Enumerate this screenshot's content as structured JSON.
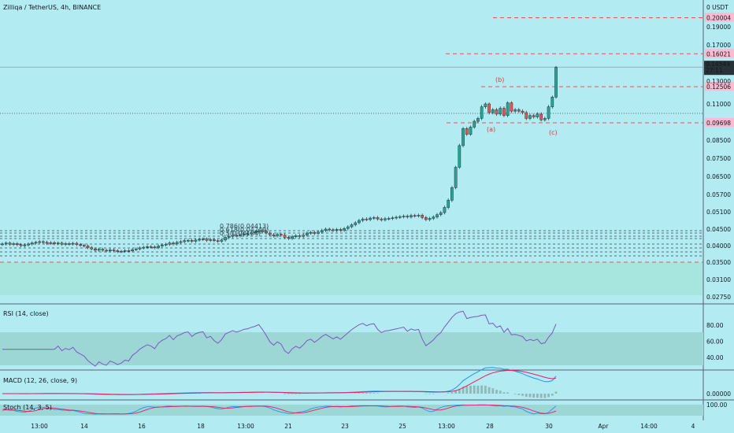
{
  "header": {
    "title": "Zilliqa / TetherUS, 4h, BINANCE",
    "rsi_label": "RSI (14, close)",
    "macd_label": "MACD (12, 26, close, 9)",
    "stoch_label": "Stoch (14, 3, 5)"
  },
  "colors": {
    "background": "#b2ebf2",
    "up": "#26a69a",
    "down": "#ef5350",
    "level_line": "#ef5350",
    "rsi": "#7e57c2",
    "macd": "#2196f3",
    "signal": "#e91e63"
  },
  "chart_data": [
    {
      "type": "candlestick",
      "title": "Zilliqa / TetherUS, 4h, BINANCE",
      "y_unit": "USDT",
      "x_ticks": [
        "13:00",
        "14",
        "16",
        "18",
        "13:00",
        "21",
        "23",
        "25",
        "13:00",
        "28",
        "30",
        "Apr",
        "14:00",
        "4"
      ],
      "y_ticks": [
        "0.19000",
        "0.17000",
        "0.13000",
        "0.11000",
        "0.08500",
        "0.07500",
        "0.06500",
        "0.05700",
        "0.05100",
        "0.04500",
        "0.04000",
        "0.03500",
        "0.03100",
        "0.02750"
      ],
      "axis_unit_label": "0 USDT",
      "last_price": {
        "value": "0.14549",
        "countdown": "27:11"
      },
      "price_labels": [
        "0.20004",
        "0.16021",
        "0.12506",
        "0.09698"
      ],
      "fib_labels": [
        "0.786(0.04413)",
        "0.618(0.04249)",
        "0.5(0.04104)"
      ],
      "wave_labels": [
        "(a)",
        "(b)",
        "(c)"
      ],
      "close": [
        0.0405,
        0.0408,
        0.0404,
        0.0406,
        0.0403,
        0.04,
        0.0402,
        0.0405,
        0.0408,
        0.041,
        0.0412,
        0.041,
        0.0407,
        0.0409,
        0.0406,
        0.0408,
        0.0404,
        0.0406,
        0.0405,
        0.0407,
        0.0403,
        0.0401,
        0.0399,
        0.0394,
        0.039,
        0.0386,
        0.0389,
        0.0386,
        0.0384,
        0.0387,
        0.0385,
        0.0382,
        0.0383,
        0.0385,
        0.0384,
        0.0388,
        0.039,
        0.0393,
        0.0395,
        0.0397,
        0.0396,
        0.0394,
        0.0399,
        0.0402,
        0.0404,
        0.0408,
        0.0405,
        0.041,
        0.0412,
        0.0415,
        0.0416,
        0.0413,
        0.0417,
        0.0419,
        0.042,
        0.0416,
        0.0418,
        0.0415,
        0.0413,
        0.0417,
        0.0425,
        0.0428,
        0.0431,
        0.043,
        0.0432,
        0.0435,
        0.0436,
        0.0439,
        0.0441,
        0.0445,
        0.0442,
        0.0438,
        0.0433,
        0.043,
        0.0434,
        0.0432,
        0.0425,
        0.0422,
        0.0427,
        0.043,
        0.0428,
        0.0432,
        0.0438,
        0.044,
        0.0437,
        0.0441,
        0.0446,
        0.045,
        0.0448,
        0.0446,
        0.0449,
        0.0447,
        0.0452,
        0.0458,
        0.0465,
        0.0472,
        0.048,
        0.0485,
        0.0483,
        0.0488,
        0.049,
        0.0485,
        0.0482,
        0.0486,
        0.0487,
        0.0489,
        0.0491,
        0.0493,
        0.0495,
        0.0492,
        0.0497,
        0.0496,
        0.0498,
        0.049,
        0.0483,
        0.0487,
        0.0492,
        0.05,
        0.0507,
        0.0525,
        0.055,
        0.06,
        0.07,
        0.082,
        0.093,
        0.089,
        0.094,
        0.098,
        0.1,
        0.108,
        0.11,
        0.104,
        0.106,
        0.103,
        0.107,
        0.102,
        0.111,
        0.105,
        0.106,
        0.105,
        0.104,
        0.1,
        0.102,
        0.101,
        0.103,
        0.099,
        0.1,
        0.108,
        0.116,
        0.145
      ],
      "rsi": {
        "name": "RSI (14, close)",
        "y_ticks": [
          "80.00",
          "60.00",
          "40.00"
        ]
      },
      "macd": {
        "name": "MACD (12, 26, close, 9)",
        "y_ticks": [
          "0.00000"
        ]
      },
      "stoch": {
        "name": "Stoch (14, 3, 5)",
        "y_ticks": [
          "100.00"
        ]
      }
    }
  ]
}
